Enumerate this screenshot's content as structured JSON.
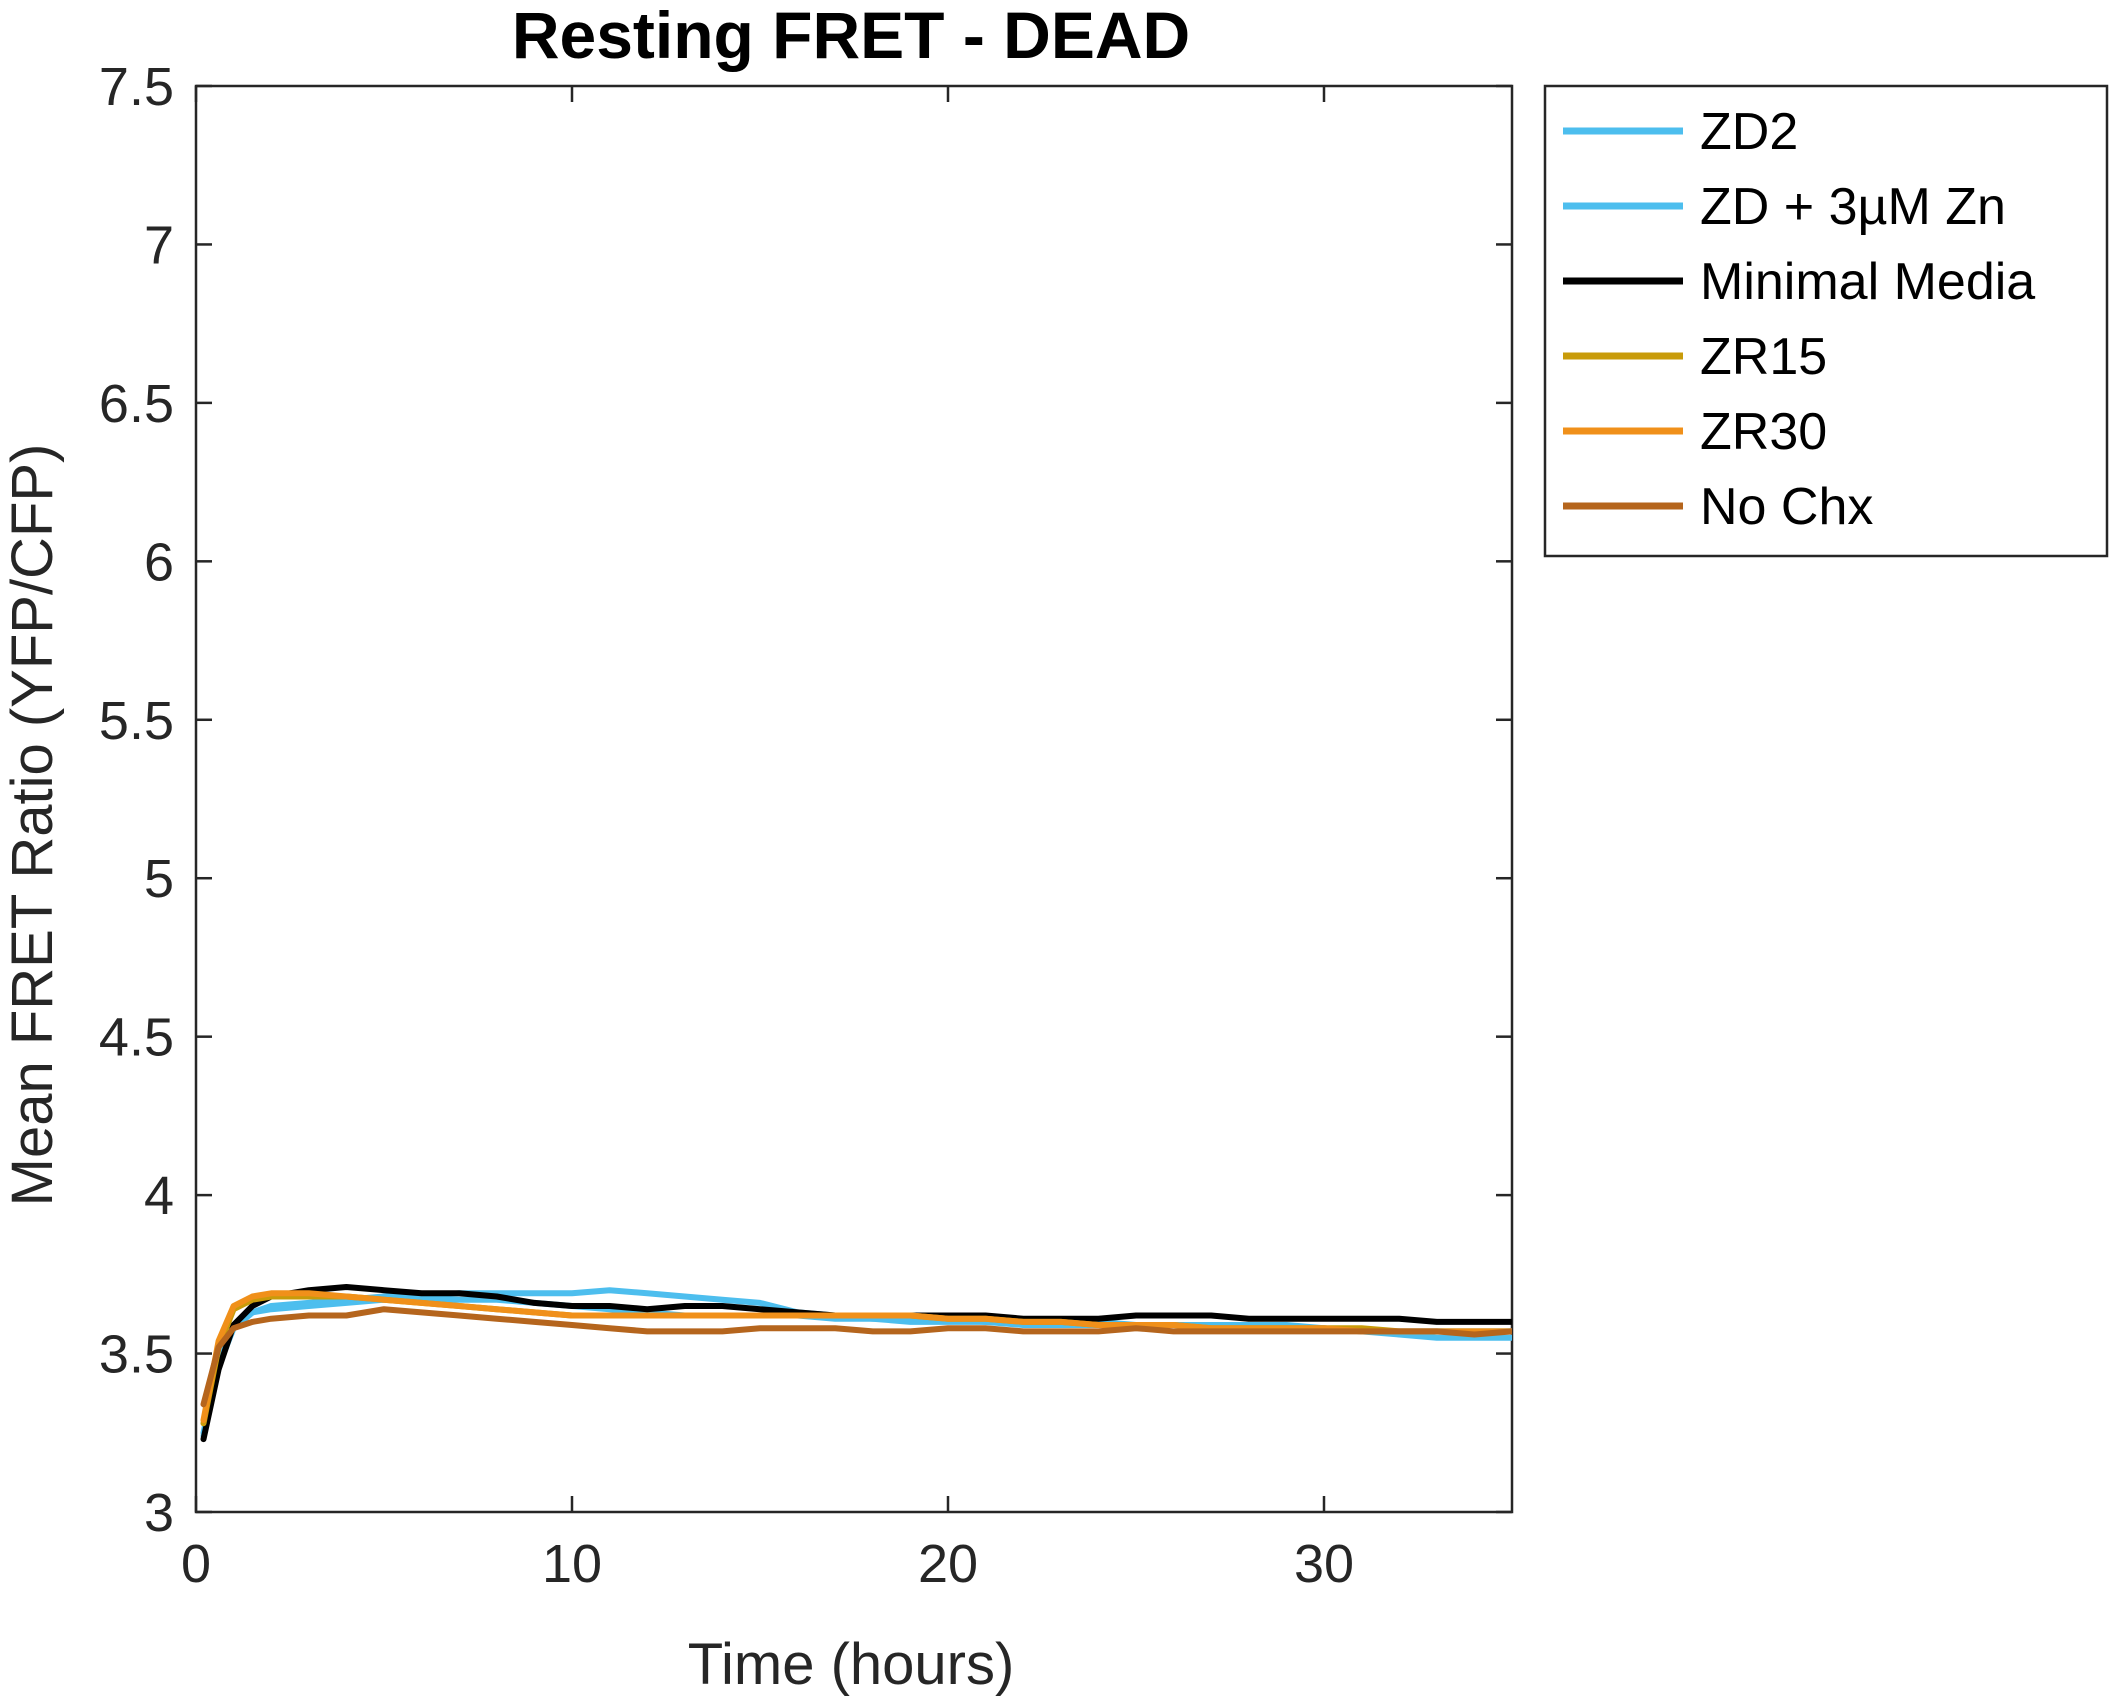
{
  "chart_data": {
    "type": "line",
    "title": "Resting FRET - DEAD",
    "xlabel": "Time (hours)",
    "ylabel": "Mean FRET Ratio (YFP/CFP)",
    "xlim": [
      0,
      35
    ],
    "ylim": [
      3,
      7.5
    ],
    "xticks": [
      0,
      10,
      20,
      30
    ],
    "xtick_labels": [
      "0",
      "10",
      "20",
      "30"
    ],
    "yticks": [
      3,
      3.5,
      4,
      4.5,
      5,
      5.5,
      6,
      6.5,
      7,
      7.5
    ],
    "ytick_labels": [
      "3",
      "3.5",
      "4",
      "4.5",
      "5",
      "5.5",
      "6",
      "6.5",
      "7",
      "7.5"
    ],
    "grid": false,
    "legend_position": "outside-right-top",
    "x": [
      0.2,
      0.6,
      1.0,
      1.5,
      2,
      3,
      4,
      5,
      6,
      7,
      8,
      9,
      10,
      11,
      12,
      13,
      14,
      15,
      16,
      17,
      18,
      19,
      20,
      21,
      22,
      23,
      24,
      25,
      26,
      27,
      28,
      29,
      30,
      31,
      32,
      33,
      34,
      35
    ],
    "series": [
      {
        "name": "ZD2",
        "color": "#4DBEEE",
        "values": [
          3.24,
          3.46,
          3.58,
          3.63,
          3.65,
          3.66,
          3.67,
          3.68,
          3.68,
          3.69,
          3.69,
          3.69,
          3.69,
          3.7,
          3.69,
          3.68,
          3.67,
          3.66,
          3.63,
          3.62,
          3.61,
          3.6,
          3.6,
          3.6,
          3.59,
          3.59,
          3.59,
          3.59,
          3.59,
          3.59,
          3.59,
          3.59,
          3.58,
          3.57,
          3.56,
          3.55,
          3.55,
          3.55
        ]
      },
      {
        "name": "ZD + 3µM Zn",
        "color": "#4DBEEE",
        "values": [
          3.25,
          3.47,
          3.58,
          3.63,
          3.64,
          3.65,
          3.66,
          3.67,
          3.67,
          3.67,
          3.67,
          3.66,
          3.65,
          3.64,
          3.63,
          3.62,
          3.62,
          3.62,
          3.62,
          3.61,
          3.61,
          3.61,
          3.61,
          3.6,
          3.6,
          3.6,
          3.6,
          3.59,
          3.59,
          3.59,
          3.58,
          3.58,
          3.58,
          3.57,
          3.57,
          3.57,
          3.57,
          3.57
        ]
      },
      {
        "name": "Minimal Media",
        "color": "#000000",
        "values": [
          3.23,
          3.45,
          3.59,
          3.65,
          3.68,
          3.7,
          3.71,
          3.7,
          3.69,
          3.69,
          3.68,
          3.66,
          3.65,
          3.65,
          3.64,
          3.65,
          3.65,
          3.64,
          3.63,
          3.62,
          3.62,
          3.62,
          3.62,
          3.62,
          3.61,
          3.61,
          3.61,
          3.62,
          3.62,
          3.62,
          3.61,
          3.61,
          3.61,
          3.61,
          3.61,
          3.6,
          3.6,
          3.6
        ]
      },
      {
        "name": "ZR15",
        "color": "#C89B0A",
        "values": [
          3.28,
          3.52,
          3.64,
          3.67,
          3.68,
          3.68,
          3.68,
          3.67,
          3.66,
          3.65,
          3.64,
          3.63,
          3.62,
          3.62,
          3.62,
          3.62,
          3.62,
          3.62,
          3.62,
          3.62,
          3.62,
          3.62,
          3.61,
          3.61,
          3.6,
          3.6,
          3.59,
          3.59,
          3.59,
          3.58,
          3.58,
          3.58,
          3.58,
          3.58,
          3.57,
          3.57,
          3.57,
          3.57
        ]
      },
      {
        "name": "ZR30",
        "color": "#F0901A",
        "values": [
          3.29,
          3.54,
          3.65,
          3.68,
          3.69,
          3.69,
          3.68,
          3.67,
          3.66,
          3.65,
          3.64,
          3.63,
          3.62,
          3.62,
          3.62,
          3.62,
          3.62,
          3.62,
          3.62,
          3.62,
          3.62,
          3.62,
          3.61,
          3.61,
          3.6,
          3.6,
          3.59,
          3.59,
          3.59,
          3.58,
          3.58,
          3.58,
          3.58,
          3.57,
          3.57,
          3.57,
          3.57,
          3.57
        ]
      },
      {
        "name": "No Chx",
        "color": "#B5651D",
        "values": [
          3.34,
          3.52,
          3.58,
          3.6,
          3.61,
          3.62,
          3.62,
          3.64,
          3.63,
          3.62,
          3.61,
          3.6,
          3.59,
          3.58,
          3.57,
          3.57,
          3.57,
          3.58,
          3.58,
          3.58,
          3.57,
          3.57,
          3.58,
          3.58,
          3.57,
          3.57,
          3.57,
          3.58,
          3.57,
          3.57,
          3.57,
          3.57,
          3.57,
          3.57,
          3.57,
          3.57,
          3.56,
          3.57
        ]
      }
    ]
  }
}
